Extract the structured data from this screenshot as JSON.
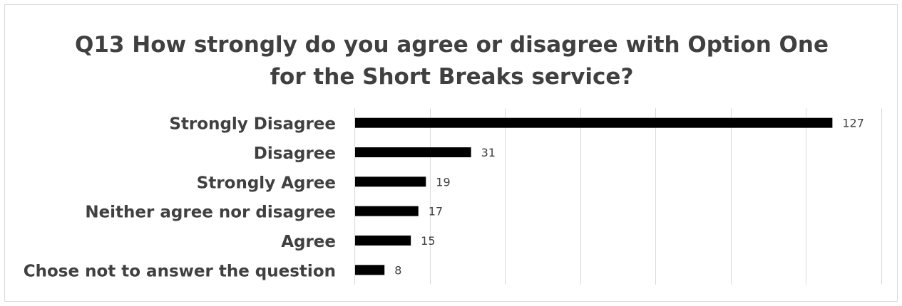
{
  "chart_data": {
    "type": "bar",
    "orientation": "horizontal",
    "title_lines": [
      "Q13 How strongly do you agree or disagree with Option One",
      "for the Short Breaks service?"
    ],
    "categories": [
      "Strongly Disagree",
      "Disagree",
      "Strongly Agree",
      "Neither agree nor disagree",
      "Agree",
      "Chose not to answer the question"
    ],
    "values": [
      127,
      31,
      19,
      17,
      15,
      8
    ],
    "xlim": [
      0,
      140
    ],
    "x_grid_step": 20,
    "grid": true,
    "data_labels": true,
    "bar_color": "#000000",
    "grid_color": "#d9d9d9",
    "text_color": "#404040"
  }
}
